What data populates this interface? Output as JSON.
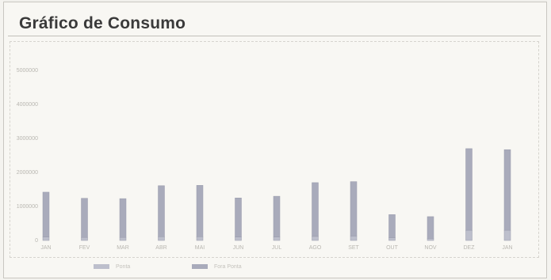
{
  "header": {
    "title": "Gráfico de Consumo"
  },
  "chart_data": {
    "type": "bar",
    "title": "Gráfico de Consumo",
    "xlabel": "",
    "ylabel": "",
    "ylim": [
      0,
      5000
    ],
    "y_ticks": [
      "0",
      "1000000",
      "2000000",
      "3000000",
      "4000000",
      "5000000"
    ],
    "categories": [
      "JAN",
      "FEV",
      "MAR",
      "ABR",
      "MAI",
      "JUN",
      "JUL",
      "AGO",
      "SET",
      "OUT",
      "NOV",
      "DEZ",
      "JAN"
    ],
    "series": [
      {
        "name": "Ponta",
        "values": [
          100,
          90,
          90,
          110,
          110,
          100,
          100,
          120,
          130,
          80,
          60,
          300,
          300
        ],
        "color": "#bdbfcc"
      },
      {
        "name": "Fora Ponta",
        "values": [
          1320,
          1150,
          1140,
          1500,
          1510,
          1150,
          1200,
          1580,
          1600,
          680,
          640,
          2400,
          2370
        ],
        "color": "#a9abbb"
      }
    ],
    "stacked": true,
    "grid": false,
    "legend_position": "bottom-left"
  }
}
